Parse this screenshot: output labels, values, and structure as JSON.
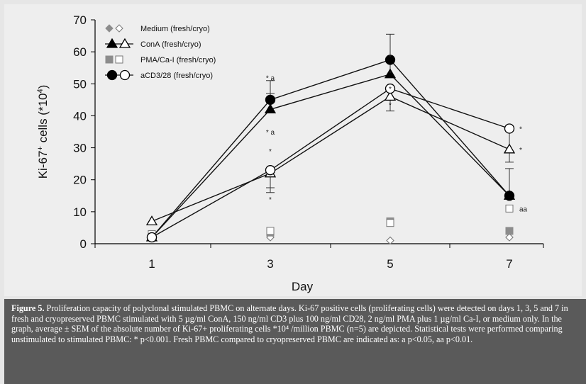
{
  "chart_data": {
    "type": "line",
    "x": [
      1,
      3,
      5,
      7
    ],
    "xlabel": "Day",
    "ylabel": "Ki-67",
    "ylabel_sup": "+",
    "ylabel_rest": " cells (*10",
    "ylabel_exp": "4",
    "ylabel_end": ")",
    "ylim": [
      0,
      70
    ],
    "yticks": [
      0,
      10,
      20,
      30,
      40,
      50,
      60,
      70
    ],
    "xticks": [
      "1",
      "3",
      "5",
      "7"
    ],
    "grid": false,
    "legend_position": "top-left",
    "legend": [
      "Medium (fresh/cryo)",
      "ConA (fresh/cryo)",
      "PMA/Ca-I (fresh/cryo)",
      "aCD3/28 (fresh/cryo)"
    ],
    "series": [
      {
        "condition": "Medium",
        "state": "fresh",
        "marker": "diamond-filled",
        "line": false,
        "values": [
          2,
          2,
          1,
          2
        ],
        "sem": [
          0,
          0,
          0,
          0
        ]
      },
      {
        "condition": "Medium",
        "state": "cryo",
        "marker": "diamond-open",
        "line": false,
        "values": [
          2,
          2,
          1,
          2
        ],
        "sem": [
          0,
          0,
          0,
          0
        ]
      },
      {
        "condition": "ConA",
        "state": "fresh",
        "marker": "triangle-filled",
        "line": true,
        "values": [
          2,
          42,
          53,
          15
        ],
        "sem": [
          0,
          5,
          5,
          0
        ]
      },
      {
        "condition": "ConA",
        "state": "cryo",
        "marker": "triangle-open",
        "line": true,
        "values": [
          7,
          22,
          46,
          29.5
        ],
        "sem": [
          0,
          6,
          4.5,
          0
        ]
      },
      {
        "condition": "PMA/Ca-I",
        "state": "fresh",
        "marker": "square-filled",
        "line": false,
        "values": [
          3,
          3.5,
          7,
          4
        ],
        "sem": [
          0,
          0,
          0,
          0
        ]
      },
      {
        "condition": "PMA/Ca-I",
        "state": "cryo",
        "marker": "square-open",
        "line": false,
        "values": [
          3,
          4,
          6.5,
          11
        ],
        "sem": [
          0,
          0,
          0,
          0
        ]
      },
      {
        "condition": "aCD3/28",
        "state": "fresh",
        "marker": "circle-filled",
        "line": true,
        "values": [
          2,
          45,
          57.5,
          15
        ],
        "sem": [
          0,
          6,
          8,
          8.5
        ]
      },
      {
        "condition": "aCD3/28",
        "state": "cryo",
        "marker": "circle-open",
        "line": true,
        "values": [
          2,
          23,
          48.5,
          36
        ],
        "sem": [
          0,
          5.5,
          0,
          10.5
        ]
      }
    ],
    "annotations": [
      {
        "text": "* a",
        "x": 3,
        "y": 52
      },
      {
        "text": "* a",
        "x": 3,
        "y": 35
      },
      {
        "text": "*",
        "x": 3,
        "y": 29
      },
      {
        "text": "*",
        "x": 3,
        "y": 14
      },
      {
        "text": "*",
        "x": 5,
        "y": 58.5
      },
      {
        "text": "*",
        "x": 5,
        "y": 53.5
      },
      {
        "text": "*",
        "x": 5,
        "y": 48.5
      },
      {
        "text": "*",
        "x": 5,
        "y": 43.5
      },
      {
        "text": "*",
        "x": 7,
        "y": 36
      },
      {
        "text": "*",
        "x": 7,
        "y": 29.5
      },
      {
        "text": "aa",
        "x": 7,
        "y": 11
      }
    ]
  },
  "caption": {
    "label": "Figure 5.",
    "text": " Proliferation capacity of polyclonal stimulated PBMC on alternate days. Ki-67 positive cells (proliferating cells) were detected on days 1, 3, 5 and 7 in fresh and cryopreserved PBMC stimulated with 5 µg/ml ConA, 150 ng/ml CD3 plus 100 ng/ml CD28, 2 ng/ml PMA plus 1 µg/ml Ca-I, or medium only. In the graph, average ± SEM of the absolute number of Ki-67+ proliferating cells *10⁴ /million PBMC (n=5) are depicted. Statistical tests were performed comparing unstimulated to stimulated PBMC: * p<0.001. Fresh PBMC compared to cryopreserved PBMC are indicated as: a p<0.05, aa p<0.01."
  }
}
